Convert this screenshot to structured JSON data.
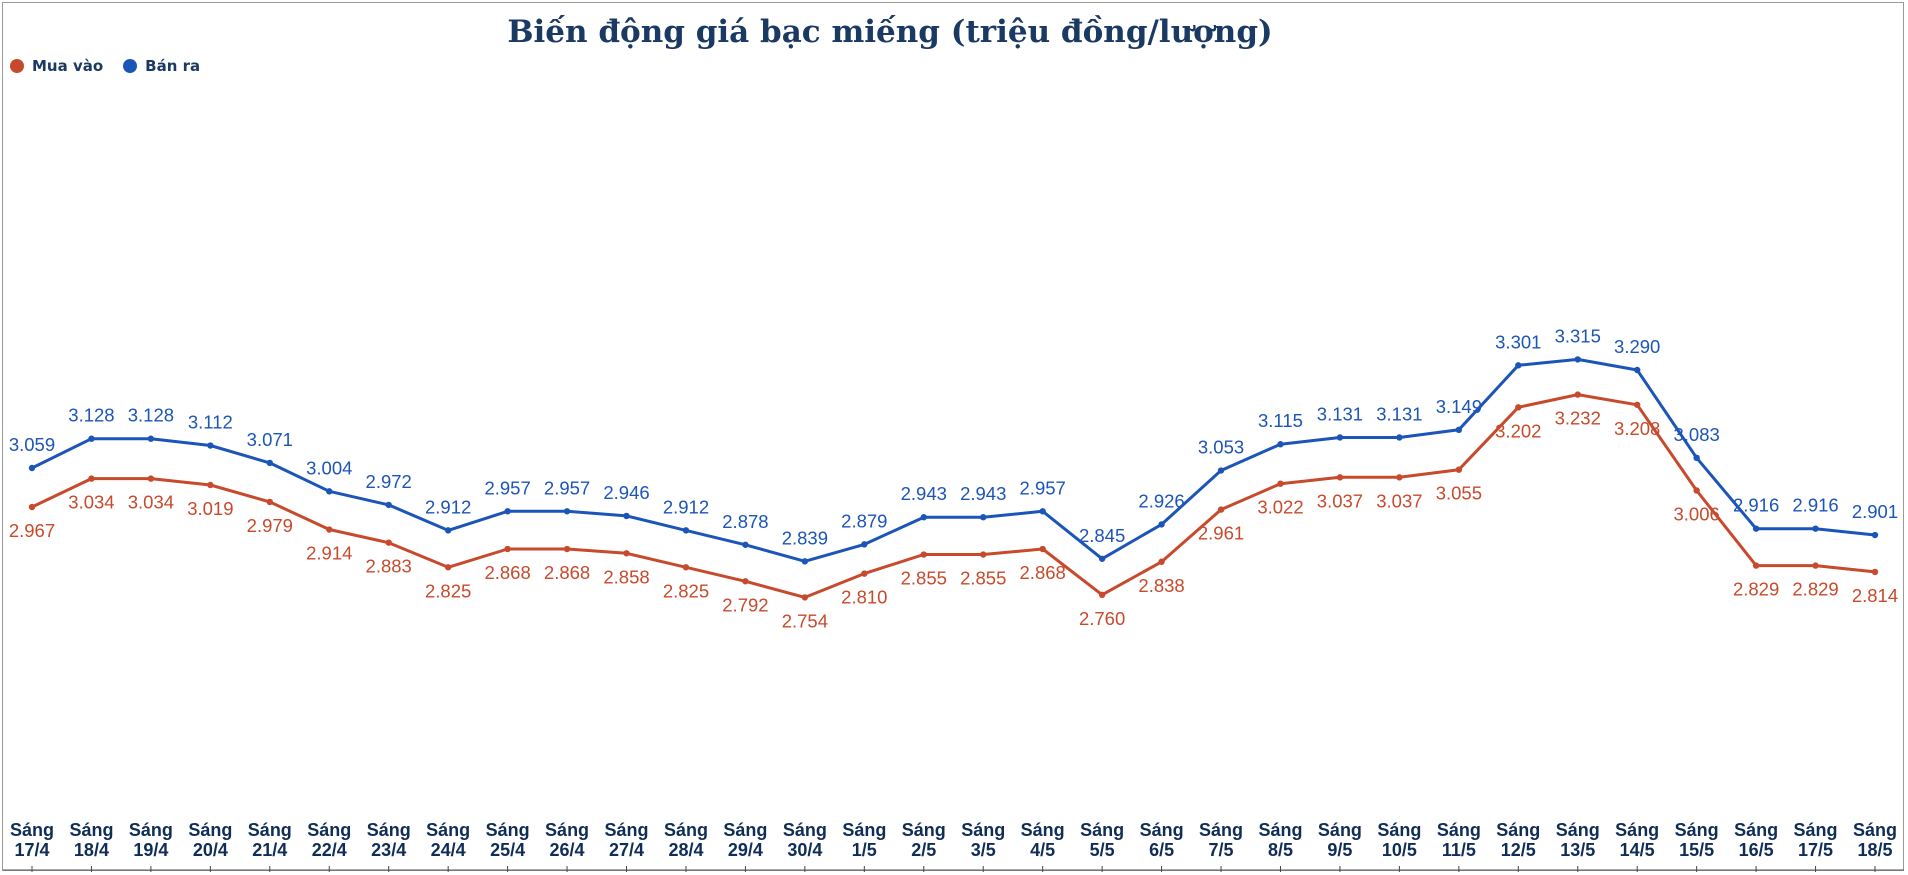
{
  "chart_data": {
    "type": "line",
    "title": "Biến động giá bạc miếng (triệu đồng/lượng)",
    "xlabel": "",
    "ylabel": "",
    "ylim": [
      2.3,
      3.95
    ],
    "grid": false,
    "legend_position": "top-left",
    "categories": [
      [
        "Sáng",
        "17/4"
      ],
      [
        "Sáng",
        "18/4"
      ],
      [
        "Sáng",
        "19/4"
      ],
      [
        "Sáng",
        "20/4"
      ],
      [
        "Sáng",
        "21/4"
      ],
      [
        "Sáng",
        "22/4"
      ],
      [
        "Sáng",
        "23/4"
      ],
      [
        "Sáng",
        "24/4"
      ],
      [
        "Sáng",
        "25/4"
      ],
      [
        "Sáng",
        "26/4"
      ],
      [
        "Sáng",
        "27/4"
      ],
      [
        "Sáng",
        "28/4"
      ],
      [
        "Sáng",
        "29/4"
      ],
      [
        "Sáng",
        "30/4"
      ],
      [
        "Sáng",
        "1/5"
      ],
      [
        "Sáng",
        "2/5"
      ],
      [
        "Sáng",
        "3/5"
      ],
      [
        "Sáng",
        "4/5"
      ],
      [
        "Sáng",
        "5/5"
      ],
      [
        "Sáng",
        "6/5"
      ],
      [
        "Sáng",
        "7/5"
      ],
      [
        "Sáng",
        "8/5"
      ],
      [
        "Sáng",
        "9/5"
      ],
      [
        "Sáng",
        "10/5"
      ],
      [
        "Sáng",
        "11/5"
      ],
      [
        "Sáng",
        "12/5"
      ],
      [
        "Sáng",
        "13/5"
      ],
      [
        "Sáng",
        "14/5"
      ],
      [
        "Sáng",
        "15/5"
      ],
      [
        "Sáng",
        "16/5"
      ],
      [
        "Sáng",
        "17/5"
      ],
      [
        "Sáng",
        "18/5"
      ]
    ],
    "series": [
      {
        "name": "Mua vào",
        "color": "#c84a2c",
        "label_position": "below",
        "values": [
          2.967,
          3.034,
          3.034,
          3.019,
          2.979,
          2.914,
          2.883,
          2.825,
          2.868,
          2.868,
          2.858,
          2.825,
          2.792,
          2.754,
          2.81,
          2.855,
          2.855,
          2.868,
          2.76,
          2.838,
          2.961,
          3.022,
          3.037,
          3.037,
          3.055,
          3.202,
          3.232,
          3.208,
          3.006,
          2.829,
          2.829,
          2.814
        ],
        "labels": [
          "2.967",
          "3.034",
          "3.034",
          "3.019",
          "2.979",
          "2.914",
          "2.883",
          "2.825",
          "2.868",
          "2.868",
          "2.858",
          "2.825",
          "2.792",
          "2.754",
          "2.810",
          "2.855",
          "2.855",
          "2.868",
          "2.760",
          "2.838",
          "2.961",
          "3.022",
          "3.037",
          "3.037",
          "3.055",
          "3.202",
          "3.232",
          "3.208",
          "3.006",
          "2.829",
          "2.829",
          "2.814"
        ]
      },
      {
        "name": "Bán ra",
        "color": "#1c55b8",
        "label_position": "above",
        "values": [
          3.059,
          3.128,
          3.128,
          3.112,
          3.071,
          3.004,
          2.972,
          2.912,
          2.957,
          2.957,
          2.946,
          2.912,
          2.878,
          2.839,
          2.879,
          2.943,
          2.943,
          2.957,
          2.845,
          2.926,
          3.053,
          3.115,
          3.131,
          3.131,
          3.149,
          3.301,
          3.315,
          3.29,
          3.083,
          2.916,
          2.916,
          2.901
        ],
        "labels": [
          "3.059",
          "3.128",
          "3.128",
          "3.112",
          "3.071",
          "3.004",
          "2.972",
          "2.912",
          "2.957",
          "2.957",
          "2.946",
          "2.912",
          "2.878",
          "2.839",
          "2.879",
          "2.943",
          "2.943",
          "2.957",
          "2.845",
          "2.926",
          "3.053",
          "3.115",
          "3.131",
          "3.131",
          "3.149",
          "3.301",
          "3.315",
          "3.290",
          "3.083",
          "2.916",
          "2.916",
          "2.901"
        ]
      }
    ]
  }
}
